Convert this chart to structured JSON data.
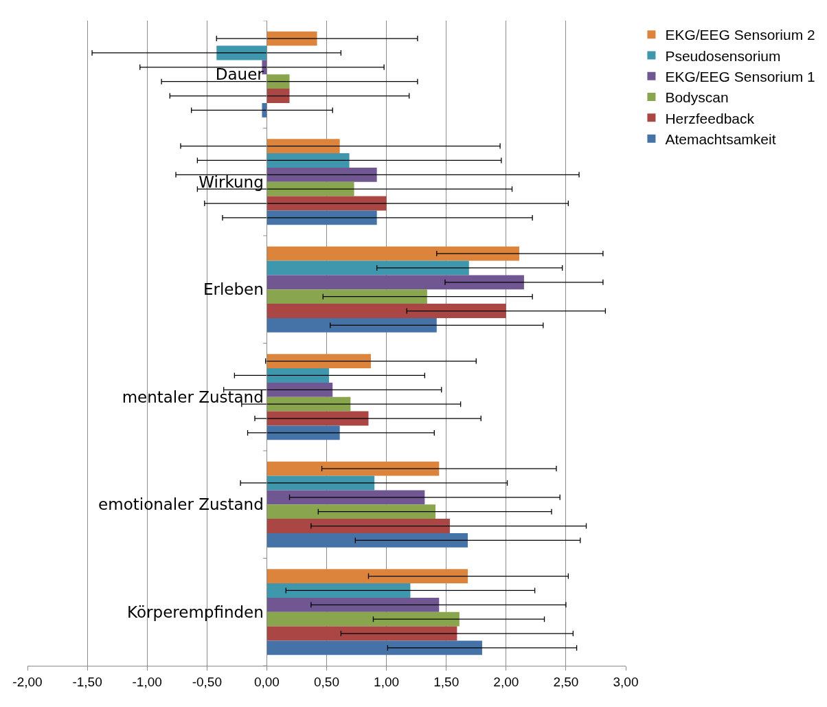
{
  "chart_data": {
    "type": "bar",
    "orientation": "horizontal",
    "categories": [
      "Dauer",
      "Wirkung",
      "Erleben",
      "mentaler Zustand",
      "emotionaler Zustand",
      "Körperempfinden"
    ],
    "series": [
      {
        "name": "EKG/EEG Sensorium 2",
        "color": "#dd843c",
        "values": [
          0.42,
          0.61,
          2.11,
          0.87,
          1.44,
          1.68
        ],
        "errors": [
          [
            -0.42,
            1.26
          ],
          [
            -0.72,
            1.95
          ],
          [
            1.42,
            2.81
          ],
          [
            -0.01,
            1.75
          ],
          [
            0.46,
            2.42
          ],
          [
            0.85,
            2.52
          ]
        ]
      },
      {
        "name": "Pseudosensorium",
        "color": "#3f97ad",
        "values": [
          -0.42,
          0.69,
          1.69,
          0.52,
          0.9,
          1.2
        ],
        "errors": [
          [
            -1.46,
            0.62
          ],
          [
            -0.58,
            1.96
          ],
          [
            0.92,
            2.47
          ],
          [
            -0.27,
            1.32
          ],
          [
            -0.22,
            2.01
          ],
          [
            0.16,
            2.24
          ]
        ]
      },
      {
        "name": "EKG/EEG Sensorium 1",
        "color": "#715791",
        "values": [
          -0.04,
          0.92,
          2.15,
          0.55,
          1.32,
          1.44
        ],
        "errors": [
          [
            -1.06,
            0.98
          ],
          [
            -0.76,
            2.61
          ],
          [
            1.49,
            2.81
          ],
          [
            -0.36,
            1.46
          ],
          [
            0.19,
            2.45
          ],
          [
            0.37,
            2.5
          ]
        ]
      },
      {
        "name": "Bodyscan",
        "color": "#89a54e",
        "values": [
          0.19,
          0.73,
          1.34,
          0.7,
          1.41,
          1.61
        ],
        "errors": [
          [
            -0.88,
            1.26
          ],
          [
            -0.58,
            2.05
          ],
          [
            0.47,
            2.22
          ],
          [
            -0.21,
            1.62
          ],
          [
            0.43,
            2.38
          ],
          [
            0.89,
            2.32
          ]
        ]
      },
      {
        "name": "Herzfeedback",
        "color": "#aa4643",
        "values": [
          0.19,
          1.0,
          2.0,
          0.85,
          1.53,
          1.59
        ],
        "errors": [
          [
            -0.81,
            1.19
          ],
          [
            -0.52,
            2.52
          ],
          [
            1.17,
            2.83
          ],
          [
            -0.1,
            1.79
          ],
          [
            0.37,
            2.67
          ],
          [
            0.62,
            2.56
          ]
        ]
      },
      {
        "name": "Atemachtsamkeit",
        "color": "#4572a7",
        "values": [
          -0.04,
          0.92,
          1.42,
          0.61,
          1.68,
          1.8
        ],
        "errors": [
          [
            -0.63,
            0.55
          ],
          [
            -0.37,
            2.22
          ],
          [
            0.53,
            2.31
          ],
          [
            -0.16,
            1.4
          ],
          [
            0.74,
            2.62
          ],
          [
            1.01,
            2.59
          ]
        ]
      }
    ],
    "xlim": [
      -2,
      3
    ],
    "xticks": [
      {
        "value": -2,
        "label": "-2,00"
      },
      {
        "value": -1.5,
        "label": "-1,50"
      },
      {
        "value": -1,
        "label": "-1,00"
      },
      {
        "value": -0.5,
        "label": "-0,50"
      },
      {
        "value": 0,
        "label": "0,00"
      },
      {
        "value": 0.5,
        "label": "0,50"
      },
      {
        "value": 1,
        "label": "1,00"
      },
      {
        "value": 1.5,
        "label": "1,50"
      },
      {
        "value": 2,
        "label": "2,00"
      },
      {
        "value": 2.5,
        "label": "2,50"
      },
      {
        "value": 3,
        "label": "3,00"
      }
    ],
    "grid": "x",
    "legend": "right"
  }
}
